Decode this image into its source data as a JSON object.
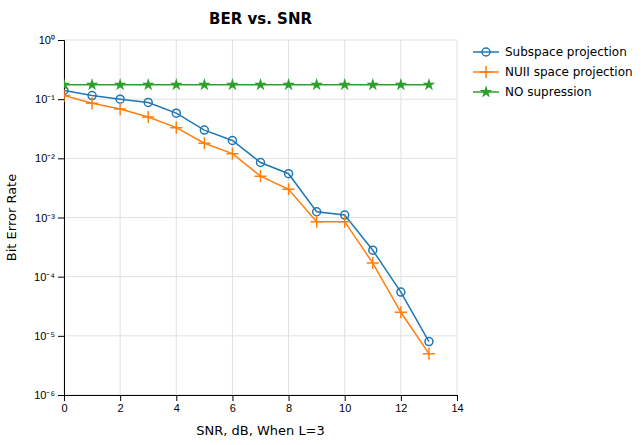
{
  "chart_data": {
    "type": "line",
    "title": "BER vs. SNR",
    "x_label": "SNR, dB, When L=3",
    "y_label": "Bit Error Rate",
    "x": [
      0,
      1,
      2,
      3,
      4,
      5,
      6,
      7,
      8,
      9,
      10,
      11,
      12,
      13
    ],
    "series": [
      {
        "name": "Subspace projection",
        "marker": "circle",
        "values": [
          0.14,
          0.115,
          0.1,
          0.088,
          0.058,
          0.03,
          0.02,
          0.0085,
          0.0055,
          0.00125,
          0.0011,
          0.00028,
          5.5e-05,
          8e-06
        ]
      },
      {
        "name": "NUII space projection",
        "marker": "plus",
        "values": [
          0.115,
          0.085,
          0.068,
          0.05,
          0.033,
          0.018,
          0.012,
          0.005,
          0.003,
          0.00085,
          0.00085,
          0.00017,
          2.5e-05,
          5e-06
        ]
      },
      {
        "name": "NO supression",
        "marker": "star",
        "values": [
          0.175,
          0.175,
          0.175,
          0.175,
          0.175,
          0.175,
          0.175,
          0.175,
          0.175,
          0.175,
          0.175,
          0.175,
          0.175,
          0.175
        ]
      }
    ],
    "xlim": [
      0,
      14
    ],
    "xticks": [
      0,
      2,
      4,
      6,
      8,
      10,
      12,
      14
    ],
    "ylim": [
      1e-06,
      1
    ],
    "yticks": [
      {
        "value": 1e-06,
        "label": "10⁻⁶"
      },
      {
        "value": 1e-05,
        "label": "10⁻⁵"
      },
      {
        "value": 0.0001,
        "label": "10⁻⁴"
      },
      {
        "value": 0.001,
        "label": "10⁻³"
      },
      {
        "value": 0.01,
        "label": "10⁻²"
      },
      {
        "value": 0.1,
        "label": "10⁻¹"
      },
      {
        "value": 1,
        "label": "10⁰"
      }
    ],
    "log": "y",
    "grid": true,
    "legend": "upper right"
  }
}
